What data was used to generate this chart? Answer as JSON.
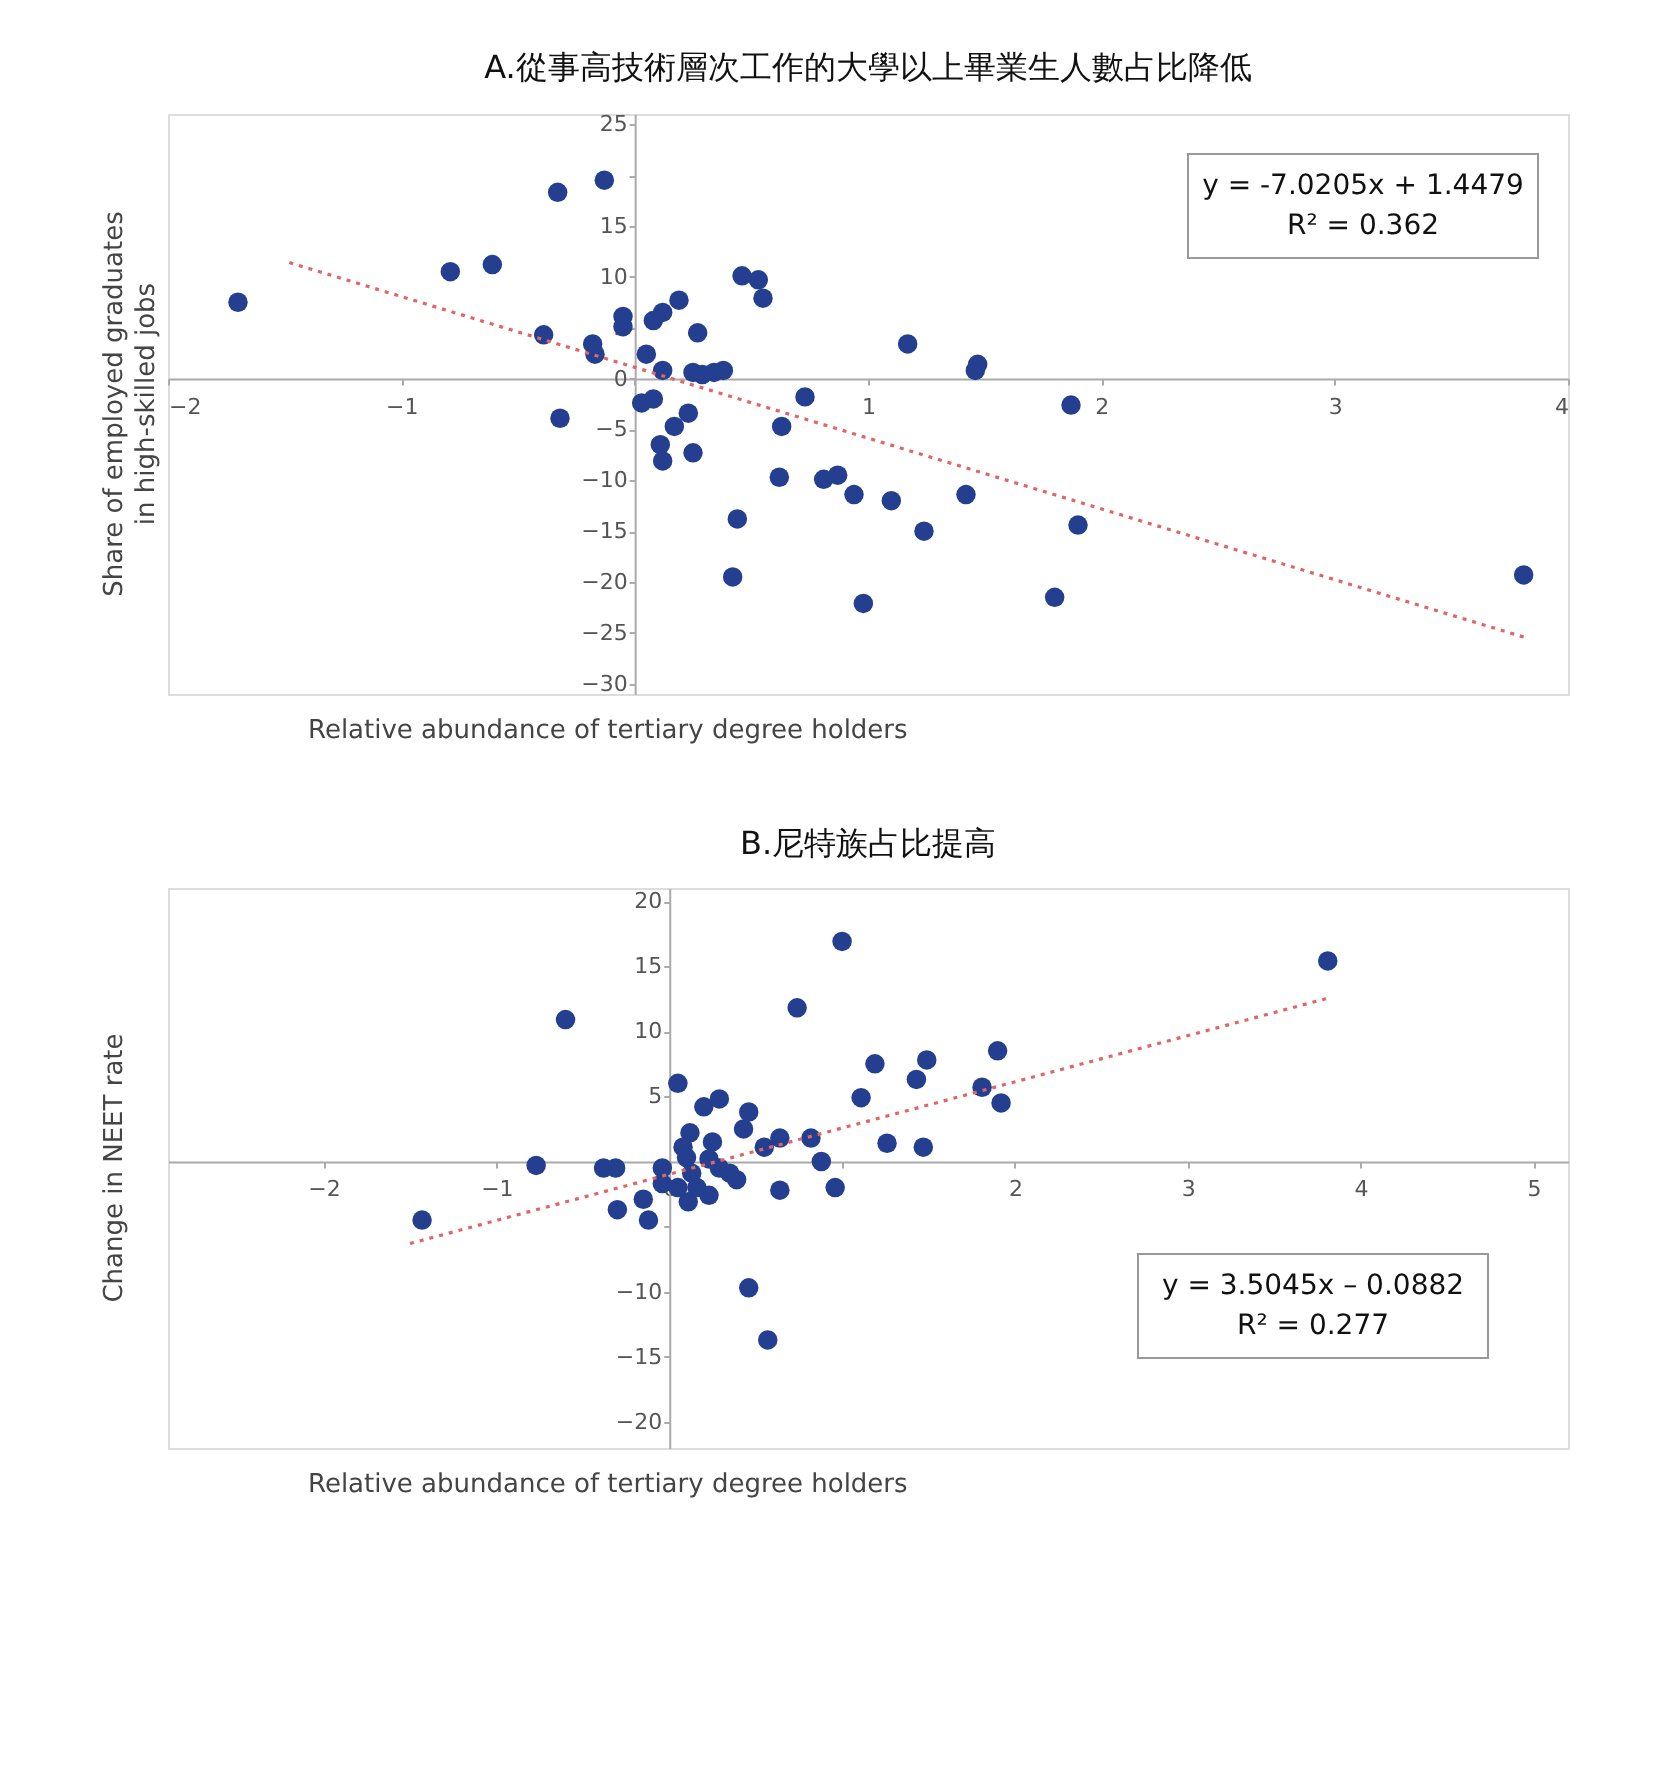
{
  "chart_data": [
    {
      "type": "scatter",
      "title": "A.從事高技術層次工作的大學以上畢業生人數占比降低",
      "xlabel": "Relative abundance of tertiary degree holders",
      "ylabel": "Share of employed graduates\nin high-skilled jobs",
      "annotations": [
        "y = -7.0205x + 1.4479",
        "R² = 0.362"
      ],
      "xlim": [
        -2,
        4
      ],
      "ylim": [
        -31,
        26
      ],
      "xticks": [
        -2,
        -1,
        {
          "value": 0,
          "label": null
        },
        1,
        2,
        3,
        4
      ],
      "yticks": [
        -30,
        -25,
        -20,
        -15,
        -10,
        -5,
        0,
        5,
        10,
        15,
        {
          "value": 20,
          "label": null
        },
        25
      ],
      "grid": false,
      "series": [
        {
          "marker": "circle",
          "color": "#243f8f",
          "x": [
            -1.7,
            -0.79,
            -0.61,
            -0.33,
            -0.13,
            -0.39,
            -0.18,
            -0.17,
            -0.32,
            -0.05,
            -0.05,
            0.08,
            0.12,
            0.19,
            0.05,
            0.12,
            0.03,
            0.08,
            0.11,
            0.12,
            0.17,
            0.23,
            0.25,
            0.27,
            0.25,
            0.29,
            0.34,
            0.38,
            0.46,
            0.53,
            0.55,
            0.44,
            0.42,
            0.63,
            0.73,
            0.62,
            0.81,
            0.87,
            0.94,
            0.98,
            1.1,
            1.17,
            1.24,
            1.42,
            1.46,
            1.47,
            1.87,
            1.9,
            1.8,
            3.81
          ],
          "values": [
            7.5,
            10.5,
            11.2,
            18.3,
            19.5,
            4.3,
            3.4,
            2.4,
            -3.9,
            6.1,
            5.1,
            5.7,
            6.5,
            7.7,
            2.4,
            0.8,
            -2.4,
            -2.0,
            -6.5,
            -8.1,
            -4.7,
            -3.4,
            -7.3,
            4.5,
            0.6,
            0.4,
            0.6,
            0.8,
            10.1,
            9.7,
            7.9,
            -13.8,
            -19.5,
            -4.7,
            -1.8,
            -9.7,
            -9.9,
            -9.5,
            -11.4,
            -22.1,
            -12.0,
            3.4,
            -15.0,
            -11.4,
            0.8,
            1.4,
            -2.6,
            -14.4,
            -21.5,
            -19.3
          ]
        },
        {
          "type": "line",
          "marker": "none",
          "color": "#e06666",
          "line_style": "dotted",
          "x": [
            -1.48,
            3.81
          ],
          "values": [
            11.4,
            -25.4
          ]
        }
      ]
    },
    {
      "type": "scatter",
      "title": "B.尼特族占比提高",
      "xlabel": "Relative abundance of tertiary degree holders",
      "ylabel": "Change in NEET rate",
      "annotations": [
        "y = 3.5045x – 0.0882",
        "R² = 0.277"
      ],
      "xlim": [
        -2.9,
        5.2
      ],
      "ylim": [
        -22,
        21
      ],
      "xticks": [
        -2,
        -1,
        0,
        {
          "value": 1,
          "label": null
        },
        2,
        3,
        4,
        5
      ],
      "yticks": [
        -20,
        -15,
        -10,
        {
          "value": -5,
          "label": null
        },
        {
          "value": 0,
          "label": null
        },
        5,
        10,
        15,
        20
      ],
      "grid": false,
      "series": [
        {
          "marker": "circle",
          "color": "#243f8f",
          "x": [
            -1.43,
            -0.6,
            -0.77,
            -0.38,
            -0.31,
            -0.3,
            -0.15,
            -0.12,
            0.05,
            -0.04,
            -0.04,
            0.12,
            0.08,
            0.1,
            0.13,
            0.05,
            0.11,
            0.16,
            0.2,
            0.29,
            0.25,
            0.23,
            0.29,
            0.23,
            0.35,
            0.39,
            0.46,
            0.43,
            0.55,
            0.64,
            0.64,
            0.46,
            0.57,
            0.74,
            0.82,
            0.88,
            0.96,
            1.0,
            1.11,
            1.19,
            1.26,
            1.43,
            1.49,
            1.47,
            1.81,
            1.9,
            1.92,
            3.81
          ],
          "values": [
            -4.5,
            10.9,
            -0.3,
            -0.5,
            -0.5,
            -3.7,
            -2.9,
            -4.5,
            6.0,
            -0.5,
            -1.7,
            2.2,
            1.1,
            0.3,
            -0.9,
            -2.0,
            -3.1,
            -2.0,
            4.2,
            4.8,
            1.5,
            0.2,
            -0.5,
            -2.6,
            -0.9,
            -1.4,
            3.8,
            2.5,
            1.1,
            1.8,
            -2.2,
            -9.7,
            -13.7,
            11.8,
            1.8,
            0.0,
            -2.0,
            16.9,
            4.9,
            7.5,
            1.4,
            6.3,
            7.8,
            1.1,
            5.7,
            8.5,
            4.5,
            15.4
          ]
        },
        {
          "type": "line",
          "marker": "none",
          "color": "#e06666",
          "line_style": "dotted",
          "x": [
            -1.5,
            3.8
          ],
          "values": [
            -6.3,
            12.5
          ]
        }
      ]
    }
  ]
}
